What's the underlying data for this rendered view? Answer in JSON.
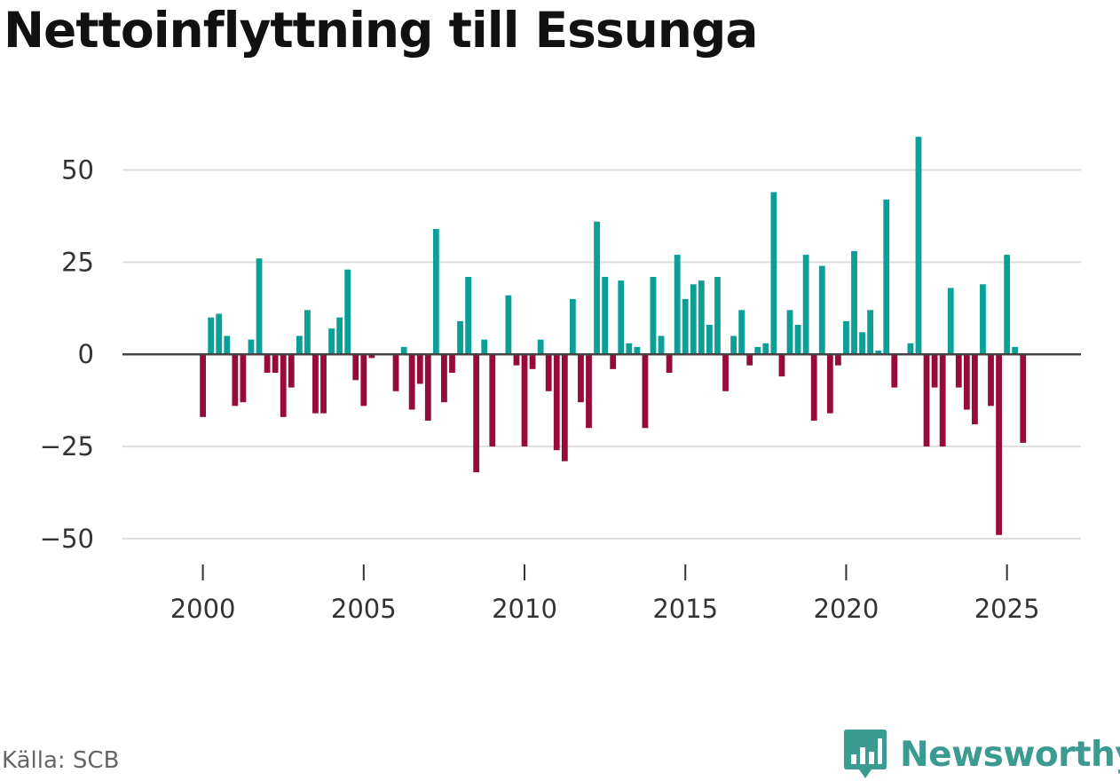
{
  "title": "Nettoinflyttning till Essunga",
  "source": "Källa: SCB",
  "logo": {
    "text": "Newsworthy",
    "icon": "bar-chart-speech-bubble-icon",
    "color": "#3c9b91"
  },
  "colors": {
    "positive": "#0c9f98",
    "negative": "#960b3b",
    "zero_line": "#444444",
    "grid": "#dddddd",
    "ticks": "#333333"
  },
  "chart_data": {
    "type": "bar",
    "title": "Nettoinflyttning till Essunga",
    "xlabel": "",
    "ylabel": "",
    "ylim": [
      -57,
      60
    ],
    "xlim": [
      1997.5,
      2027.3
    ],
    "yticks": [
      -50,
      -25,
      0,
      25,
      50
    ],
    "ytick_labels": [
      "−50",
      "−25",
      "0",
      "25",
      "50"
    ],
    "xticks": [
      2000,
      2005,
      2010,
      2015,
      2020,
      2025
    ],
    "xtick_labels": [
      "2000",
      "2005",
      "2010",
      "2015",
      "2020",
      "2025"
    ],
    "grid": true,
    "frequency": "quarterly",
    "start_year": 2000,
    "values": [
      -17,
      10,
      11,
      5,
      -14,
      -13,
      4,
      26,
      -5,
      -5,
      -17,
      -9,
      5,
      12,
      -16,
      -16,
      7,
      10,
      23,
      -7,
      -14,
      -1,
      0,
      0,
      -10,
      2,
      -15,
      -8,
      -18,
      34,
      -13,
      -5,
      9,
      21,
      -32,
      4,
      -25,
      0,
      16,
      -3,
      -25,
      -4,
      4,
      -10,
      -26,
      -29,
      15,
      -13,
      -20,
      36,
      21,
      -4,
      20,
      3,
      2,
      -20,
      21,
      5,
      -5,
      27,
      15,
      19,
      20,
      8,
      21,
      -10,
      5,
      12,
      -3,
      2,
      3,
      44,
      -6,
      12,
      8,
      27,
      -18,
      24,
      -16,
      -3,
      9,
      28,
      6,
      12,
      1,
      42,
      -9,
      0,
      3,
      59,
      -25,
      -9,
      -25,
      18,
      -9,
      -15,
      -19,
      19,
      -14,
      -49,
      27,
      2,
      -24
    ]
  }
}
